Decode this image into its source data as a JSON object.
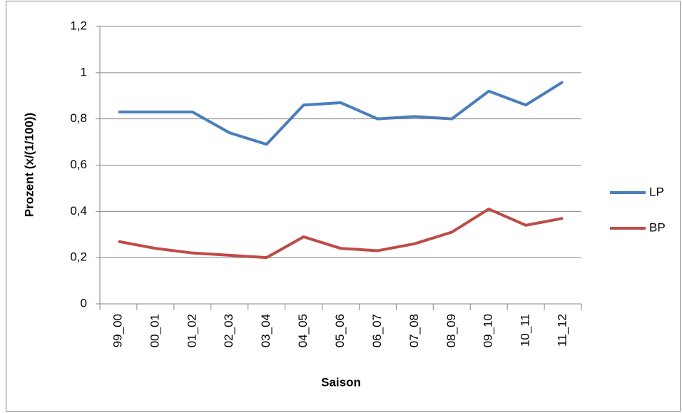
{
  "chart_data": {
    "type": "line",
    "x_label": "Saison",
    "y_label": "Prozent (x/(1/100))",
    "categories": [
      "99_00",
      "00_01",
      "01_02",
      "02_03",
      "03_04",
      "04_05",
      "05_06",
      "06_07",
      "07_08",
      "08_09",
      "09_10",
      "10_11",
      "11_12"
    ],
    "series": [
      {
        "name": "LP",
        "color": "#4a7ebb",
        "values": [
          0.83,
          0.83,
          0.83,
          0.74,
          0.69,
          0.86,
          0.87,
          0.8,
          0.81,
          0.8,
          0.92,
          0.86,
          0.96
        ]
      },
      {
        "name": "BP",
        "color": "#be4b48",
        "values": [
          0.27,
          0.24,
          0.22,
          0.21,
          0.2,
          0.29,
          0.24,
          0.23,
          0.26,
          0.31,
          0.41,
          0.34,
          0.37
        ]
      }
    ],
    "ylim": [
      0,
      1.2
    ],
    "yticks": [
      0,
      {
        "value": 0.2,
        "label": "0,2"
      },
      {
        "value": 0.4,
        "label": "0,4"
      },
      {
        "value": 0.6,
        "label": "0,6"
      },
      {
        "value": 0.8,
        "label": "0,8"
      },
      1,
      {
        "value": 1.2,
        "label": "1,2"
      }
    ],
    "grid": true,
    "legend": "right"
  }
}
